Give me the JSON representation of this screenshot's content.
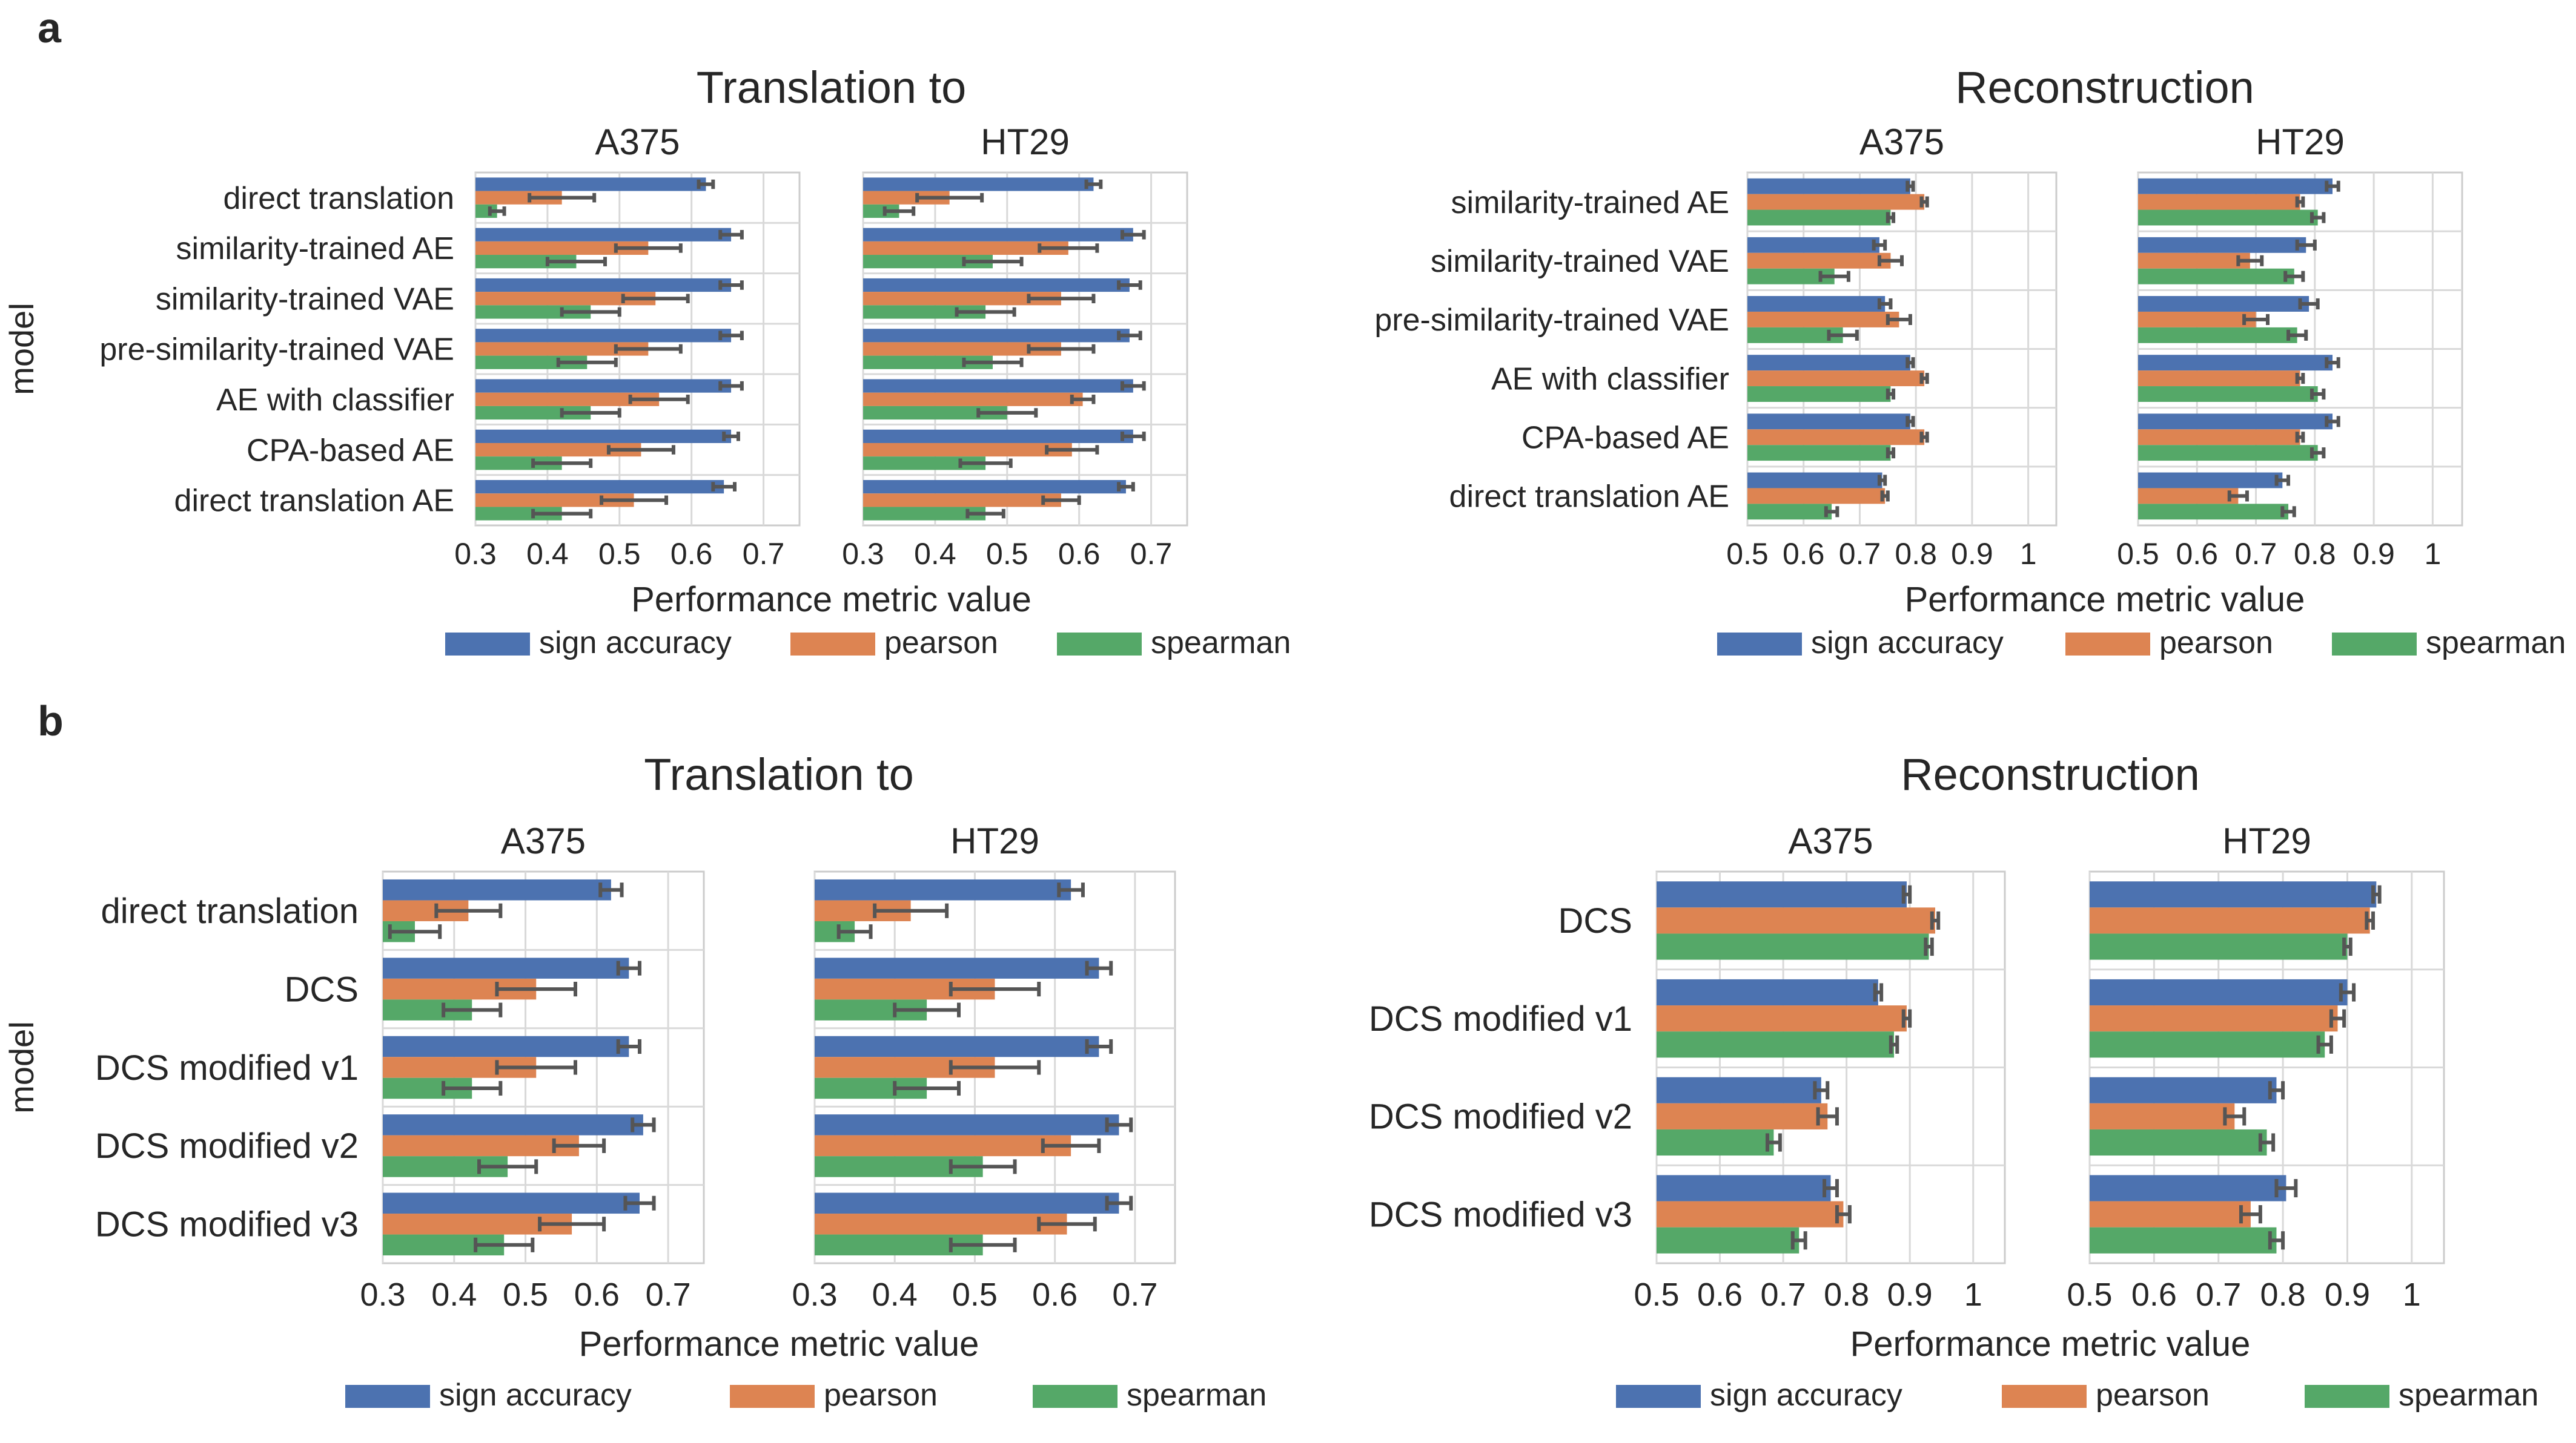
{
  "colors": {
    "sign accuracy": "#4c72b0",
    "pearson": "#dd8452",
    "spearman": "#55a868",
    "grid": "#d9d9d9",
    "axis": "#cccccc",
    "errorbar": "#555555"
  },
  "legend": {
    "entries": [
      "sign accuracy",
      "pearson",
      "spearman"
    ],
    "placement": "bottom"
  },
  "chart_data": [
    {
      "panel_label": "a",
      "type": "bar",
      "orientation": "horizontal",
      "title": "Translation to",
      "ylabel": "model",
      "xlabel": "Performance metric value",
      "xlim": [
        0.3,
        0.75
      ],
      "xticks": [
        0.3,
        0.4,
        0.5,
        0.6,
        0.7
      ],
      "xticklabels": [
        "0.3",
        "0.4",
        "0.5",
        "0.6",
        "0.7"
      ],
      "grid": true,
      "categories": [
        "direct translation",
        "similarity-trained AE",
        "similarity-trained VAE",
        "pre-similarity-trained VAE",
        "AE with classifier",
        "CPA-based AE",
        "direct translation AE"
      ],
      "facets": [
        {
          "name": "A375",
          "series": [
            {
              "name": "sign accuracy",
              "values": [
                0.62,
                0.655,
                0.655,
                0.655,
                0.655,
                0.655,
                0.645
              ],
              "err": [
                0.01,
                0.015,
                0.015,
                0.015,
                0.015,
                0.01,
                0.015
              ]
            },
            {
              "name": "pearson",
              "values": [
                0.42,
                0.54,
                0.55,
                0.54,
                0.555,
                0.53,
                0.52
              ],
              "err": [
                0.045,
                0.045,
                0.045,
                0.045,
                0.04,
                0.045,
                0.045
              ]
            },
            {
              "name": "spearman",
              "values": [
                0.33,
                0.44,
                0.46,
                0.455,
                0.46,
                0.42,
                0.42
              ],
              "err": [
                0.01,
                0.04,
                0.04,
                0.04,
                0.04,
                0.04,
                0.04
              ]
            }
          ]
        },
        {
          "name": "HT29",
          "series": [
            {
              "name": "sign accuracy",
              "values": [
                0.62,
                0.675,
                0.67,
                0.67,
                0.675,
                0.675,
                0.665
              ],
              "err": [
                0.01,
                0.015,
                0.015,
                0.015,
                0.015,
                0.015,
                0.01
              ]
            },
            {
              "name": "pearson",
              "values": [
                0.42,
                0.585,
                0.575,
                0.575,
                0.605,
                0.59,
                0.575
              ],
              "err": [
                0.045,
                0.04,
                0.045,
                0.045,
                0.015,
                0.035,
                0.025
              ]
            },
            {
              "name": "spearman",
              "values": [
                0.35,
                0.48,
                0.47,
                0.48,
                0.5,
                0.47,
                0.47
              ],
              "err": [
                0.02,
                0.04,
                0.04,
                0.04,
                0.04,
                0.035,
                0.025
              ]
            }
          ]
        }
      ]
    },
    {
      "type": "bar",
      "orientation": "horizontal",
      "title": "Reconstruction",
      "ylabel": "",
      "xlabel": "Performance metric value",
      "xlim": [
        0.5,
        1.05
      ],
      "xticks": [
        0.5,
        0.6,
        0.7,
        0.8,
        0.9,
        1.0
      ],
      "xticklabels": [
        "0.5",
        "0.6",
        "0.7",
        "0.8",
        "0.9",
        "1"
      ],
      "grid": true,
      "categories": [
        "similarity-trained AE",
        "similarity-trained VAE",
        "pre-similarity-trained VAE",
        "AE with classifier",
        "CPA-based AE",
        "direct translation AE"
      ],
      "facets": [
        {
          "name": "A375",
          "series": [
            {
              "name": "sign accuracy",
              "values": [
                0.79,
                0.735,
                0.745,
                0.79,
                0.79,
                0.74
              ],
              "err": [
                0.005,
                0.01,
                0.01,
                0.005,
                0.005,
                0.005
              ]
            },
            {
              "name": "pearson",
              "values": [
                0.815,
                0.755,
                0.77,
                0.815,
                0.815,
                0.745
              ],
              "err": [
                0.005,
                0.02,
                0.02,
                0.005,
                0.005,
                0.005
              ]
            },
            {
              "name": "spearman",
              "values": [
                0.755,
                0.655,
                0.67,
                0.755,
                0.755,
                0.65
              ],
              "err": [
                0.005,
                0.025,
                0.025,
                0.005,
                0.005,
                0.01
              ]
            }
          ]
        },
        {
          "name": "HT29",
          "series": [
            {
              "name": "sign accuracy",
              "values": [
                0.83,
                0.785,
                0.79,
                0.83,
                0.83,
                0.745
              ],
              "err": [
                0.01,
                0.015,
                0.015,
                0.01,
                0.01,
                0.01
              ]
            },
            {
              "name": "pearson",
              "values": [
                0.775,
                0.69,
                0.7,
                0.775,
                0.775,
                0.67
              ],
              "err": [
                0.005,
                0.02,
                0.02,
                0.005,
                0.005,
                0.015
              ]
            },
            {
              "name": "spearman",
              "values": [
                0.805,
                0.765,
                0.77,
                0.805,
                0.805,
                0.755
              ],
              "err": [
                0.01,
                0.015,
                0.015,
                0.01,
                0.01,
                0.01
              ]
            }
          ]
        }
      ]
    },
    {
      "panel_label": "b",
      "type": "bar",
      "orientation": "horizontal",
      "title": "Translation to",
      "ylabel": "model",
      "xlabel": "Performance metric value",
      "xlim": [
        0.3,
        0.75
      ],
      "xticks": [
        0.3,
        0.4,
        0.5,
        0.6,
        0.7
      ],
      "xticklabels": [
        "0.3",
        "0.4",
        "0.5",
        "0.6",
        "0.7"
      ],
      "grid": true,
      "categories": [
        "direct translation",
        "DCS",
        "DCS modified v1",
        "DCS modified v2",
        "DCS modified v3"
      ],
      "facets": [
        {
          "name": "A375",
          "series": [
            {
              "name": "sign accuracy",
              "values": [
                0.62,
                0.645,
                0.645,
                0.665,
                0.66
              ],
              "err": [
                0.015,
                0.015,
                0.015,
                0.015,
                0.02
              ]
            },
            {
              "name": "pearson",
              "values": [
                0.42,
                0.515,
                0.515,
                0.575,
                0.565
              ],
              "err": [
                0.045,
                0.055,
                0.055,
                0.035,
                0.045
              ]
            },
            {
              "name": "spearman",
              "values": [
                0.345,
                0.425,
                0.425,
                0.475,
                0.47
              ],
              "err": [
                0.035,
                0.04,
                0.04,
                0.04,
                0.04
              ]
            }
          ]
        },
        {
          "name": "HT29",
          "series": [
            {
              "name": "sign accuracy",
              "values": [
                0.62,
                0.655,
                0.655,
                0.68,
                0.68
              ],
              "err": [
                0.015,
                0.015,
                0.015,
                0.015,
                0.015
              ]
            },
            {
              "name": "pearson",
              "values": [
                0.42,
                0.525,
                0.525,
                0.62,
                0.615
              ],
              "err": [
                0.045,
                0.055,
                0.055,
                0.035,
                0.035
              ]
            },
            {
              "name": "spearman",
              "values": [
                0.35,
                0.44,
                0.44,
                0.51,
                0.51
              ],
              "err": [
                0.02,
                0.04,
                0.04,
                0.04,
                0.04
              ]
            }
          ]
        }
      ]
    },
    {
      "type": "bar",
      "orientation": "horizontal",
      "title": "Reconstruction",
      "ylabel": "",
      "xlabel": "Performance metric value",
      "xlim": [
        0.5,
        1.05
      ],
      "xticks": [
        0.5,
        0.6,
        0.7,
        0.8,
        0.9,
        1.0
      ],
      "xticklabels": [
        "0.5",
        "0.6",
        "0.7",
        "0.8",
        "0.9",
        "1"
      ],
      "grid": true,
      "categories": [
        "DCS",
        "DCS modified v1",
        "DCS modified v2",
        "DCS modified v3"
      ],
      "facets": [
        {
          "name": "A375",
          "series": [
            {
              "name": "sign accuracy",
              "values": [
                0.895,
                0.85,
                0.76,
                0.775
              ],
              "err": [
                0.005,
                0.005,
                0.01,
                0.01
              ]
            },
            {
              "name": "pearson",
              "values": [
                0.94,
                0.895,
                0.77,
                0.795
              ],
              "err": [
                0.005,
                0.005,
                0.015,
                0.01
              ]
            },
            {
              "name": "spearman",
              "values": [
                0.93,
                0.875,
                0.685,
                0.725
              ],
              "err": [
                0.005,
                0.005,
                0.01,
                0.01
              ]
            }
          ]
        },
        {
          "name": "HT29",
          "series": [
            {
              "name": "sign accuracy",
              "values": [
                0.945,
                0.9,
                0.79,
                0.805
              ],
              "err": [
                0.005,
                0.01,
                0.01,
                0.015
              ]
            },
            {
              "name": "pearson",
              "values": [
                0.935,
                0.885,
                0.725,
                0.75
              ],
              "err": [
                0.005,
                0.01,
                0.015,
                0.015
              ]
            },
            {
              "name": "spearman",
              "values": [
                0.9,
                0.865,
                0.775,
                0.79
              ],
              "err": [
                0.005,
                0.01,
                0.01,
                0.01
              ]
            }
          ]
        }
      ]
    }
  ]
}
